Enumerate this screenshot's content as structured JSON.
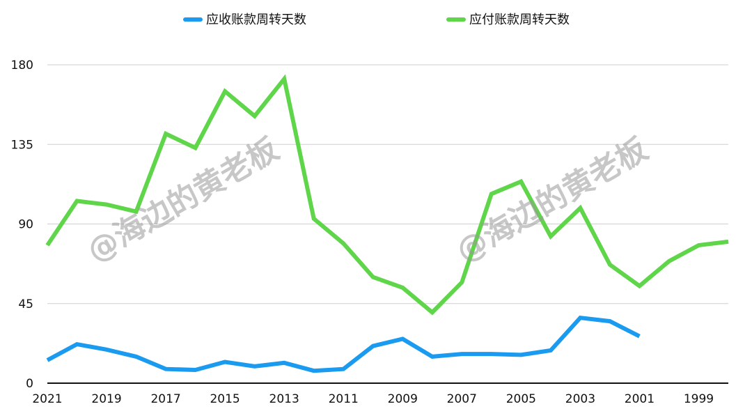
{
  "chart_data": {
    "type": "line",
    "title": "",
    "xlabel": "",
    "ylabel": "",
    "x": [
      2021,
      2020,
      2019,
      2018,
      2017,
      2016,
      2015,
      2014,
      2013,
      2012,
      2011,
      2010,
      2009,
      2008,
      2007,
      2006,
      2005,
      2004,
      2003,
      2002,
      2001,
      2000,
      1999,
      1998
    ],
    "x_tick_labels": [
      "2021",
      "2019",
      "2017",
      "2015",
      "2013",
      "2011",
      "2009",
      "2007",
      "2005",
      "2003",
      "2001",
      "1999"
    ],
    "x_tick_values": [
      2021,
      2019,
      2017,
      2015,
      2013,
      2011,
      2009,
      2007,
      2005,
      2003,
      2001,
      1999
    ],
    "xlim": [
      2021,
      1998
    ],
    "ylim": [
      0,
      180
    ],
    "y_ticks": [
      0,
      45,
      90,
      135,
      180
    ],
    "grid": true,
    "legend_position": "top",
    "series": [
      {
        "name": "应收账款周转天数",
        "color": "#1a9bef",
        "values": [
          13,
          22,
          19,
          15,
          8,
          7.5,
          12,
          9.5,
          11.5,
          7,
          8,
          21,
          25,
          15,
          16.5,
          16.5,
          16,
          18.5,
          37,
          35,
          26.5,
          null,
          null,
          null
        ]
      },
      {
        "name": "应付账款周转天数",
        "color": "#5fd649",
        "values": [
          78,
          103,
          101,
          97,
          141,
          133,
          165,
          151,
          172,
          93,
          79,
          60,
          54,
          40,
          57,
          107,
          114,
          83,
          99,
          67,
          55,
          69,
          78,
          80
        ]
      }
    ]
  },
  "watermarks": [
    "@海边的黄老板",
    "@海边的黄老板"
  ]
}
